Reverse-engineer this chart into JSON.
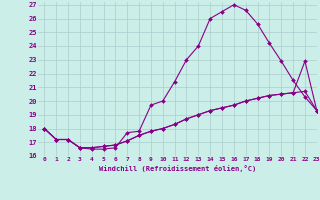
{
  "background_color": "#cceee8",
  "grid_color": "#aacccc",
  "line_color": "#880088",
  "xlim": [
    -0.5,
    23
  ],
  "ylim": [
    16,
    27.2
  ],
  "yticks": [
    16,
    17,
    18,
    19,
    20,
    21,
    22,
    23,
    24,
    25,
    26,
    27
  ],
  "xticks": [
    0,
    1,
    2,
    3,
    4,
    5,
    6,
    7,
    8,
    9,
    10,
    11,
    12,
    13,
    14,
    15,
    16,
    17,
    18,
    19,
    20,
    21,
    22,
    23
  ],
  "xlabel": "Windchill (Refroidissement éolien,°C)",
  "line1_x": [
    0,
    1,
    2,
    3,
    4,
    5,
    6,
    7,
    8,
    9,
    10,
    11,
    12,
    13,
    14,
    15,
    16,
    17,
    18,
    19,
    20,
    21,
    22,
    23
  ],
  "line1_y": [
    18.0,
    17.2,
    17.2,
    16.6,
    16.5,
    16.5,
    16.6,
    17.7,
    17.8,
    19.7,
    20.0,
    21.4,
    23.0,
    24.0,
    26.0,
    26.5,
    27.0,
    26.6,
    25.6,
    24.2,
    22.9,
    21.5,
    20.3,
    19.3
  ],
  "line2_x": [
    0,
    1,
    2,
    3,
    4,
    5,
    6,
    7,
    8,
    9,
    10,
    11,
    12,
    13,
    14,
    15,
    16,
    17,
    18,
    19,
    20,
    21,
    22,
    23
  ],
  "line2_y": [
    18.0,
    17.2,
    17.2,
    16.6,
    16.6,
    16.7,
    16.8,
    17.1,
    17.5,
    17.8,
    18.0,
    18.3,
    18.7,
    19.0,
    19.3,
    19.5,
    19.7,
    20.0,
    20.2,
    20.4,
    20.5,
    20.6,
    22.9,
    19.3
  ],
  "line3_x": [
    0,
    1,
    2,
    3,
    4,
    5,
    6,
    7,
    8,
    9,
    10,
    11,
    12,
    13,
    14,
    15,
    16,
    17,
    18,
    19,
    20,
    21,
    22,
    23
  ],
  "line3_y": [
    18.0,
    17.2,
    17.2,
    16.6,
    16.6,
    16.7,
    16.8,
    17.1,
    17.5,
    17.8,
    18.0,
    18.3,
    18.7,
    19.0,
    19.3,
    19.5,
    19.7,
    20.0,
    20.2,
    20.4,
    20.5,
    20.6,
    20.7,
    19.3
  ],
  "markersize": 2.0,
  "linewidth": 0.8
}
